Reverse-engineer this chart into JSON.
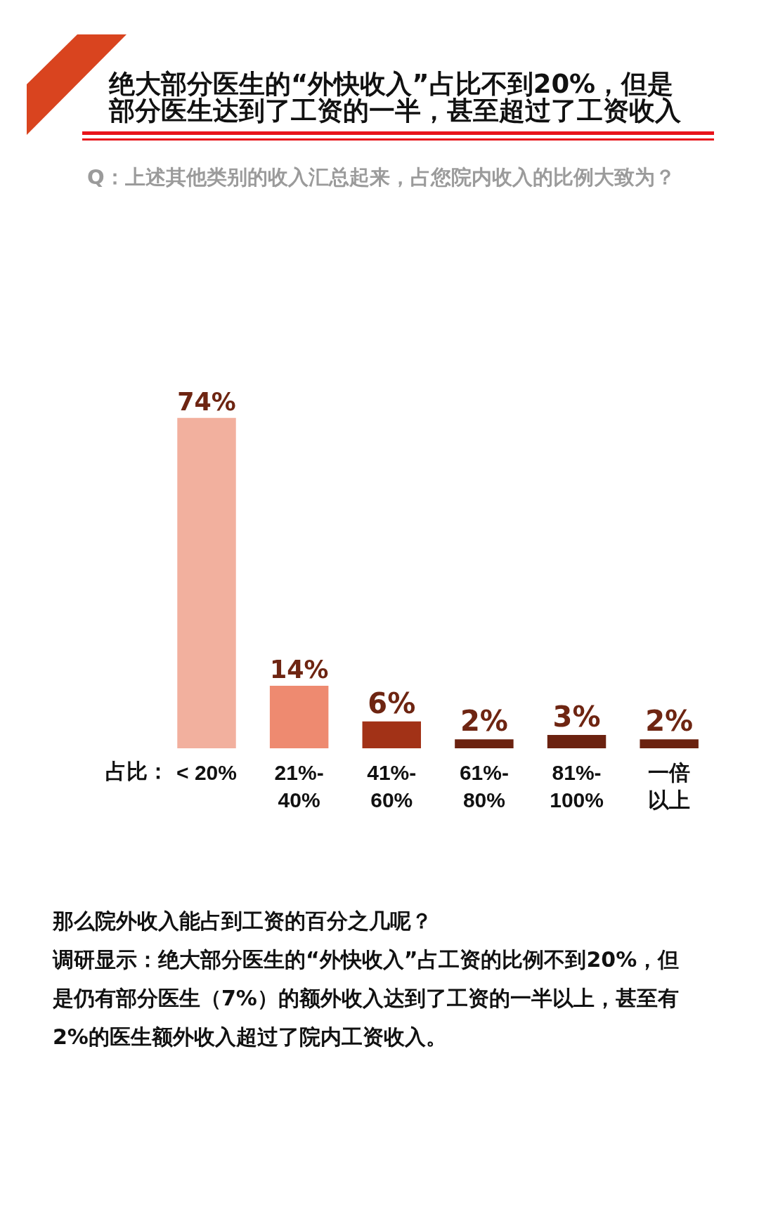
{
  "chart_data": {
    "type": "bar",
    "title": "绝大部分医生的“外快收入”占比不到20%，但是部分医生达到了工资的一半，甚至超过了工资收入",
    "subtitle": "Q：上述其他类别的收入汇总起来，占您院内收入的比例大致为？",
    "xlabel": "占比：",
    "categories": [
      "< 20%",
      "21%-40%",
      "41%-60%",
      "61%-80%",
      "81%-100%",
      "一倍以上"
    ],
    "values": [
      74,
      14,
      6,
      2,
      3,
      2
    ],
    "colors": [
      "#f2b09e",
      "#ee8a70",
      "#a23217",
      "#6b2210",
      "#6b2210",
      "#6b2210"
    ],
    "value_labels": [
      "74%",
      "14%",
      "6%",
      "2%",
      "3%",
      "2%"
    ],
    "annotations": [
      "那么院外收入能占到工资的百分之几呢？",
      "调研显示：绝大部分医生的“外快收入”占工资的比例不到20%，但是仍有部分医生（7%）的额外收入达到了工资的一半以上，甚至有2%的医生额外收入超过了院内工资收入。"
    ]
  }
}
